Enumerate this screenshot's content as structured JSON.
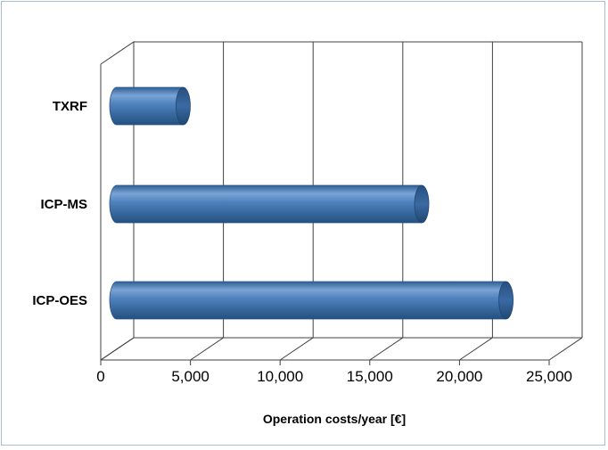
{
  "chart_data": {
    "type": "bar",
    "orientation": "horizontal",
    "style": "3d-cylinder",
    "categories": [
      "TXRF",
      "ICP-MS",
      "ICP-OES"
    ],
    "values": [
      3700,
      17000,
      21700
    ],
    "xlabel": "Operation costs/year [€]",
    "xlim": [
      0,
      25000
    ],
    "xticks": [
      "0",
      "5,000",
      "10,000",
      "15,000",
      "20,000",
      "25,000"
    ],
    "grid": "vertical",
    "legend": "none",
    "colors": {
      "bar": "#4f81bd",
      "bar_dark": "#2c5a8c",
      "bar_light": "#8db3e2",
      "grid": "#404040"
    }
  }
}
